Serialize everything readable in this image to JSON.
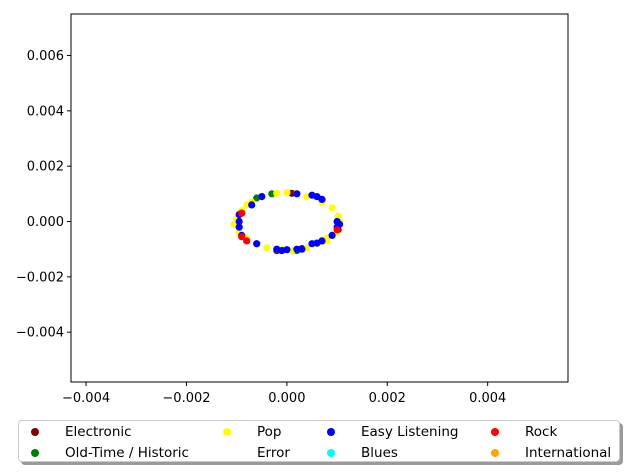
{
  "chart_data": {
    "type": "scatter",
    "title": "",
    "xlabel": "",
    "ylabel": "",
    "xlim": [
      -0.0043,
      0.0056
    ],
    "ylim": [
      -0.0058,
      0.0075
    ],
    "xticks": [
      -0.004,
      -0.002,
      0.0,
      0.002,
      0.004
    ],
    "xtick_labels": [
      "−0.004",
      "−0.002",
      "0.000",
      "0.002",
      "0.004"
    ],
    "yticks": [
      -0.004,
      -0.002,
      0.0,
      0.002,
      0.004,
      0.006
    ],
    "ytick_labels": [
      "−0.004",
      "−0.002",
      "0.000",
      "0.002",
      "0.004",
      "0.006"
    ],
    "grid": false,
    "legend_position": "below",
    "series": [
      {
        "name": "Electronic",
        "color": "#800000",
        "points": [
          [
            0.0001,
            0.00102
          ],
          [
            0.0003,
            -0.00098
          ],
          [
            -0.0002,
            -0.00105
          ],
          [
            0.00102,
            -0.0003
          ]
        ]
      },
      {
        "name": "Old-Time / Historic",
        "color": "#008000",
        "points": [
          [
            -0.0006,
            0.00085
          ],
          [
            -0.0003,
            0.001
          ],
          [
            -0.001,
            -0.0001
          ],
          [
            0.0002,
            -0.00105
          ]
        ]
      },
      {
        "name": "Pop",
        "color": "#ffff00",
        "points": [
          [
            -0.0002,
            0.00102
          ],
          [
            0.0,
            0.00105
          ],
          [
            0.0002,
            0.00102
          ],
          [
            0.0004,
            0.0009
          ],
          [
            0.0007,
            0.0007
          ],
          [
            0.0009,
            0.0005
          ],
          [
            0.00102,
            0.0002
          ],
          [
            0.00105,
            0.0
          ],
          [
            0.00098,
            -0.0004
          ],
          [
            0.0008,
            -0.0006
          ],
          [
            0.0006,
            -0.0008
          ],
          [
            0.0004,
            -0.00095
          ],
          [
            0.0001,
            -0.00105
          ],
          [
            -0.0001,
            -0.00102
          ],
          [
            -0.0004,
            -0.00095
          ],
          [
            -0.0006,
            -0.00085
          ],
          [
            -0.0008,
            -0.0006
          ],
          [
            -0.00095,
            -0.0004
          ],
          [
            -0.00105,
            -0.0001
          ],
          [
            -0.001,
            0.0001
          ],
          [
            -0.0009,
            0.0004
          ],
          [
            -0.0008,
            0.0006
          ],
          [
            -0.0005,
            0.0009
          ],
          [
            -0.0007,
            0.0007
          ],
          [
            0.0008,
            -0.0007
          ],
          [
            -0.0002,
            -0.001
          ]
        ]
      },
      {
        "name": "Error",
        "color": "#ffffff",
        "points": []
      },
      {
        "name": "Easy Listening",
        "color": "#0000ff",
        "points": [
          [
            -0.00095,
            0.00025
          ],
          [
            -0.0009,
            0.0003
          ],
          [
            -0.00095,
            0.0
          ],
          [
            -0.00095,
            -0.0002
          ],
          [
            -0.0009,
            -0.0005
          ],
          [
            -0.0007,
            0.0006
          ],
          [
            -0.0005,
            0.0009
          ],
          [
            -0.0006,
            -0.0008
          ],
          [
            -0.0002,
            -0.001
          ],
          [
            -0.0001,
            -0.00105
          ],
          [
            0.0,
            -0.00102
          ],
          [
            0.0002,
            -0.001
          ],
          [
            0.0003,
            -0.001
          ],
          [
            0.0005,
            -0.0008
          ],
          [
            0.0006,
            -0.00078
          ],
          [
            0.0007,
            -0.0007
          ],
          [
            0.0009,
            -0.0005
          ],
          [
            0.001,
            -0.0002
          ],
          [
            0.001,
            0.0
          ],
          [
            0.00105,
            -0.0001
          ],
          [
            0.0005,
            0.00095
          ],
          [
            0.0006,
            0.0009
          ],
          [
            0.0007,
            0.0008
          ],
          [
            0.0002,
            0.001
          ]
        ]
      },
      {
        "name": "Blues",
        "color": "#00ffff",
        "points": []
      },
      {
        "name": "Rock",
        "color": "#ff0000",
        "points": [
          [
            -0.0009,
            0.0003
          ],
          [
            -0.0008,
            -0.0007
          ],
          [
            -0.0009,
            -0.00055
          ],
          [
            0.001,
            -0.0003
          ]
        ]
      },
      {
        "name": "International",
        "color": "#ffa500",
        "points": []
      }
    ]
  }
}
